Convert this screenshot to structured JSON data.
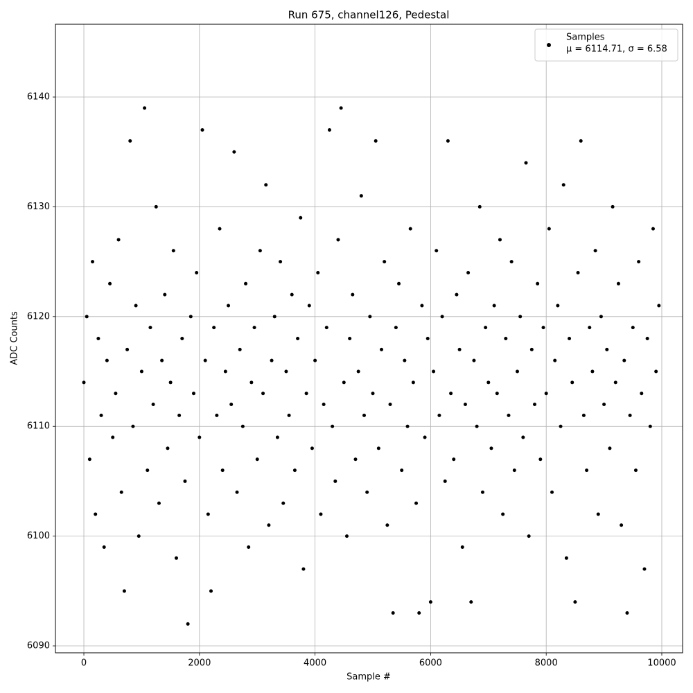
{
  "chart_data": {
    "type": "scatter",
    "title": "Run 675, channel126, Pedestal",
    "xlabel": "Sample #",
    "ylabel": "ADC Counts",
    "legend_loc": "upper right",
    "legend_stats": "μ = 6114.71, σ = 6.58",
    "grid": true,
    "xlim": [
      -492,
      10360
    ],
    "ylim": [
      6089.37,
      6146.63
    ],
    "xticks": [
      0,
      2000,
      4000,
      6000,
      8000,
      10000
    ],
    "yticks": [
      6090,
      6100,
      6110,
      6120,
      6130,
      6140
    ],
    "series": [
      {
        "name": "Samples",
        "color": "#000000",
        "x": [
          0,
          50,
          100,
          150,
          200,
          250,
          300,
          350,
          400,
          450,
          500,
          550,
          600,
          650,
          700,
          750,
          800,
          850,
          900,
          950,
          1000,
          1050,
          1100,
          1150,
          1200,
          1250,
          1300,
          1350,
          1400,
          1450,
          1500,
          1550,
          1600,
          1650,
          1700,
          1750,
          1800,
          1850,
          1900,
          1950,
          2000,
          2050,
          2100,
          2150,
          2200,
          2250,
          2300,
          2350,
          2400,
          2450,
          2500,
          2550,
          2600,
          2650,
          2700,
          2750,
          2800,
          2850,
          2900,
          2950,
          3000,
          3050,
          3100,
          3150,
          3200,
          3250,
          3300,
          3350,
          3400,
          3450,
          3500,
          3550,
          3600,
          3650,
          3700,
          3750,
          3800,
          3850,
          3900,
          3950,
          4000,
          4050,
          4100,
          4150,
          4200,
          4250,
          4300,
          4350,
          4400,
          4450,
          4500,
          4550,
          4600,
          4650,
          4700,
          4750,
          4800,
          4850,
          4900,
          4950,
          5000,
          5050,
          5100,
          5150,
          5200,
          5250,
          5300,
          5350,
          5400,
          5450,
          5500,
          5550,
          5600,
          5650,
          5700,
          5750,
          5800,
          5850,
          5900,
          5950,
          6000,
          6050,
          6100,
          6150,
          6200,
          6250,
          6300,
          6350,
          6400,
          6450,
          6500,
          6550,
          6600,
          6650,
          6700,
          6750,
          6800,
          6850,
          6900,
          6950,
          7000,
          7050,
          7100,
          7150,
          7200,
          7250,
          7300,
          7350,
          7400,
          7450,
          7500,
          7550,
          7600,
          7650,
          7700,
          7750,
          7800,
          7850,
          7900,
          7950,
          8000,
          8050,
          8100,
          8150,
          8200,
          8250,
          8300,
          8350,
          8400,
          8450,
          8500,
          8550,
          8600,
          8650,
          8700,
          8750,
          8800,
          8850,
          8900,
          8950,
          9000,
          9050,
          9100,
          9150,
          9200,
          9250,
          9300,
          9350,
          9400,
          9450,
          9500,
          9550,
          9600,
          9650,
          9700,
          9750,
          9800,
          9850,
          9900,
          9950
        ],
        "values": [
          6114,
          6120,
          6107,
          6125,
          6102,
          6118,
          6111,
          6099,
          6116,
          6123,
          6109,
          6113,
          6127,
          6104,
          6095,
          6117,
          6136,
          6110,
          6121,
          6100,
          6115,
          6139,
          6106,
          6119,
          6112,
          6130,
          6103,
          6116,
          6122,
          6108,
          6114,
          6126,
          6098,
          6111,
          6118,
          6105,
          6092,
          6120,
          6113,
          6124,
          6109,
          6137,
          6116,
          6102,
          6095,
          6119,
          6111,
          6128,
          6106,
          6115,
          6121,
          6112,
          6135,
          6104,
          6117,
          6110,
          6123,
          6099,
          6114,
          6119,
          6107,
          6126,
          6113,
          6132,
          6101,
          6116,
          6120,
          6109,
          6125,
          6103,
          6115,
          6111,
          6122,
          6106,
          6118,
          6129,
          6097,
          6113,
          6121,
          6108,
          6116,
          6124,
          6102,
          6112,
          6119,
          6137,
          6110,
          6105,
          6127,
          6139,
          6114,
          6100,
          6118,
          6122,
          6107,
          6115,
          6131,
          6111,
          6104,
          6120,
          6113,
          6136,
          6108,
          6117,
          6125,
          6101,
          6112,
          6093,
          6119,
          6123,
          6106,
          6116,
          6110,
          6128,
          6114,
          6103,
          6093,
          6121,
          6109,
          6118,
          6094,
          6115,
          6126,
          6111,
          6120,
          6105,
          6136,
          6113,
          6107,
          6122,
          6117,
          6099,
          6112,
          6124,
          6094,
          6116,
          6110,
          6130,
          6104,
          6119,
          6114,
          6108,
          6121,
          6113,
          6127,
          6102,
          6118,
          6111,
          6125,
          6106,
          6115,
          6120,
          6109,
          6134,
          6100,
          6117,
          6112,
          6123,
          6107,
          6119,
          6113,
          6128,
          6104,
          6116,
          6121,
          6110,
          6132,
          6098,
          6118,
          6114,
          6094,
          6124,
          6136,
          6111,
          6106,
          6119,
          6115,
          6126,
          6102,
          6120,
          6112,
          6117,
          6108,
          6130,
          6114,
          6123,
          6101,
          6116,
          6093,
          6111,
          6119,
          6106,
          6125,
          6113,
          6097,
          6118,
          6110,
          6128,
          6115,
          6121
        ]
      }
    ]
  }
}
